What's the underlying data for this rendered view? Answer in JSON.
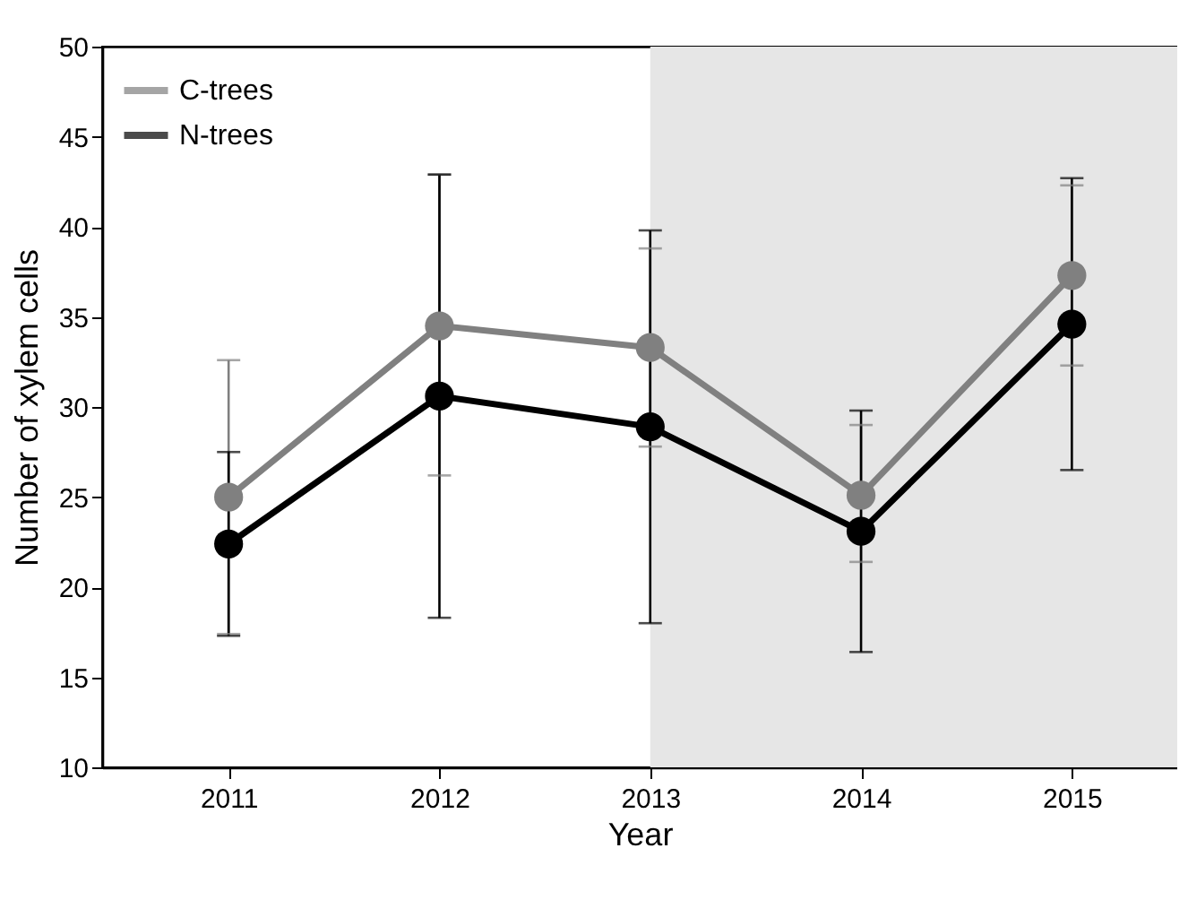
{
  "chart_data": {
    "type": "line",
    "xlabel": "Year",
    "ylabel": "Number of xylem cells",
    "x": [
      2011,
      2012,
      2013,
      2014,
      2015
    ],
    "series": [
      {
        "name": "C-trees",
        "color": "#808080",
        "values": [
          25.0,
          34.5,
          33.3,
          25.1,
          37.3
        ],
        "errors": [
          [
            17.4,
            32.6
          ],
          [
            26.2,
            42.9
          ],
          [
            27.8,
            38.8
          ],
          [
            21.4,
            29.0
          ],
          [
            32.3,
            42.3
          ]
        ]
      },
      {
        "name": "N-trees",
        "color": "#000000",
        "values": [
          22.4,
          30.6,
          28.9,
          23.1,
          34.6
        ],
        "errors": [
          [
            17.3,
            27.5
          ],
          [
            18.3,
            42.9
          ],
          [
            18.0,
            39.8
          ],
          [
            16.4,
            29.8
          ],
          [
            26.5,
            42.7
          ]
        ]
      }
    ],
    "xlim": [
      2010.4,
      2015.5
    ],
    "xticks": [
      2011,
      2012,
      2013,
      2014,
      2015
    ],
    "ylim": [
      10,
      50
    ],
    "yticks": [
      10,
      15,
      20,
      25,
      30,
      35,
      40,
      45,
      50
    ],
    "bands": [
      {
        "axis": "x",
        "from": 2013,
        "to": 2015.5,
        "color": "#e6e6e6"
      }
    ],
    "marker": "circle",
    "line_style": "solid",
    "legend": "top left",
    "grid": false
  }
}
